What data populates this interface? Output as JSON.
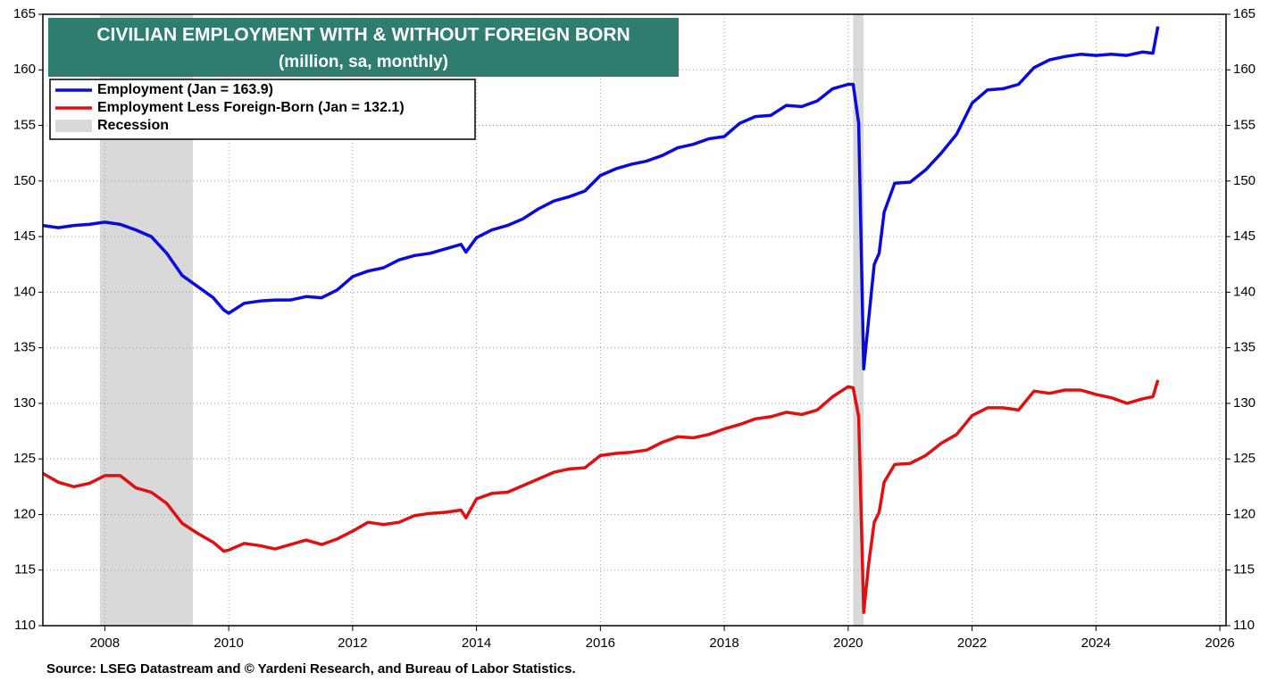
{
  "chart_data": {
    "type": "line",
    "title": "CIVILIAN EMPLOYMENT WITH & WITHOUT FOREIGN BORN",
    "subtitle": "(million, sa, monthly)",
    "source": "Source: LSEG Datastream and © Yardeni Research, and Bureau of Labor Statistics.",
    "x": [
      2007.0,
      2007.25,
      2007.5,
      2007.75,
      2008.0,
      2008.25,
      2008.5,
      2008.75,
      2009.0,
      2009.25,
      2009.5,
      2009.75,
      2009.92,
      2010.0,
      2010.25,
      2010.5,
      2010.75,
      2011.0,
      2011.25,
      2011.5,
      2011.75,
      2012.0,
      2012.25,
      2012.5,
      2012.75,
      2013.0,
      2013.25,
      2013.5,
      2013.75,
      2013.83,
      2014.0,
      2014.25,
      2014.5,
      2014.75,
      2015.0,
      2015.25,
      2015.5,
      2015.75,
      2016.0,
      2016.25,
      2016.5,
      2016.75,
      2017.0,
      2017.25,
      2017.5,
      2017.75,
      2018.0,
      2018.25,
      2018.5,
      2018.75,
      2019.0,
      2019.25,
      2019.5,
      2019.75,
      2020.0,
      2020.08,
      2020.17,
      2020.25,
      2020.33,
      2020.42,
      2020.5,
      2020.58,
      2020.75,
      2021.0,
      2021.25,
      2021.5,
      2021.75,
      2022.0,
      2022.25,
      2022.5,
      2022.75,
      2023.0,
      2023.25,
      2023.5,
      2023.75,
      2024.0,
      2024.25,
      2024.5,
      2024.75,
      2024.92,
      2025.0
    ],
    "series": [
      {
        "name": "Employment (Jan = 163.9)",
        "color": "#0a0adc",
        "values": [
          146.0,
          145.8,
          146.0,
          146.1,
          146.3,
          146.1,
          145.6,
          145.0,
          143.5,
          141.5,
          140.5,
          139.5,
          138.4,
          138.1,
          139.0,
          139.2,
          139.3,
          139.3,
          139.6,
          139.5,
          140.2,
          141.4,
          141.9,
          142.2,
          142.9,
          143.3,
          143.5,
          143.9,
          144.3,
          143.6,
          144.9,
          145.6,
          146.0,
          146.6,
          147.5,
          148.2,
          148.6,
          149.1,
          150.5,
          151.1,
          151.5,
          151.8,
          152.3,
          153.0,
          153.3,
          153.8,
          154.0,
          155.2,
          155.8,
          155.9,
          156.8,
          156.7,
          157.2,
          158.3,
          158.7,
          158.7,
          155.2,
          133.1,
          137.5,
          142.5,
          143.5,
          147.2,
          149.8,
          149.9,
          151.0,
          152.5,
          154.2,
          157.0,
          158.2,
          158.3,
          158.7,
          160.2,
          160.9,
          161.2,
          161.4,
          161.3,
          161.4,
          161.3,
          161.6,
          161.5,
          163.9
        ]
      },
      {
        "name": "Employment Less Foreign-Born  (Jan = 132.1)",
        "color": "#e01010",
        "values": [
          123.7,
          122.9,
          122.5,
          122.8,
          123.5,
          123.5,
          122.4,
          122.0,
          121.0,
          119.2,
          118.3,
          117.5,
          116.7,
          116.8,
          117.4,
          117.2,
          116.9,
          117.3,
          117.7,
          117.3,
          117.8,
          118.5,
          119.3,
          119.1,
          119.3,
          119.9,
          120.1,
          120.2,
          120.4,
          119.7,
          121.4,
          121.9,
          122.0,
          122.6,
          123.2,
          123.8,
          124.1,
          124.2,
          125.3,
          125.5,
          125.6,
          125.8,
          126.5,
          127.0,
          126.9,
          127.2,
          127.7,
          128.1,
          128.6,
          128.8,
          129.2,
          129.0,
          129.4,
          130.6,
          131.5,
          131.4,
          128.8,
          111.2,
          115.5,
          119.3,
          120.2,
          122.9,
          124.5,
          124.6,
          125.3,
          126.4,
          127.2,
          128.9,
          129.6,
          129.6,
          129.4,
          131.1,
          130.9,
          131.2,
          131.2,
          130.8,
          130.5,
          130.0,
          130.4,
          130.6,
          132.1
        ]
      }
    ],
    "recession_label": "Recession",
    "recession_color": "#d9d9d9",
    "recessions": [
      [
        2007.92,
        2009.42
      ],
      [
        2020.08,
        2020.25
      ]
    ],
    "xlim": [
      2007,
      2026.1
    ],
    "xticks": [
      2008,
      2010,
      2012,
      2014,
      2016,
      2018,
      2020,
      2022,
      2024,
      2026
    ],
    "ylim": [
      110,
      165
    ],
    "yticks": [
      110,
      115,
      120,
      125,
      130,
      135,
      140,
      145,
      150,
      155,
      160,
      165
    ],
    "grid": true,
    "legend": "upper left"
  }
}
